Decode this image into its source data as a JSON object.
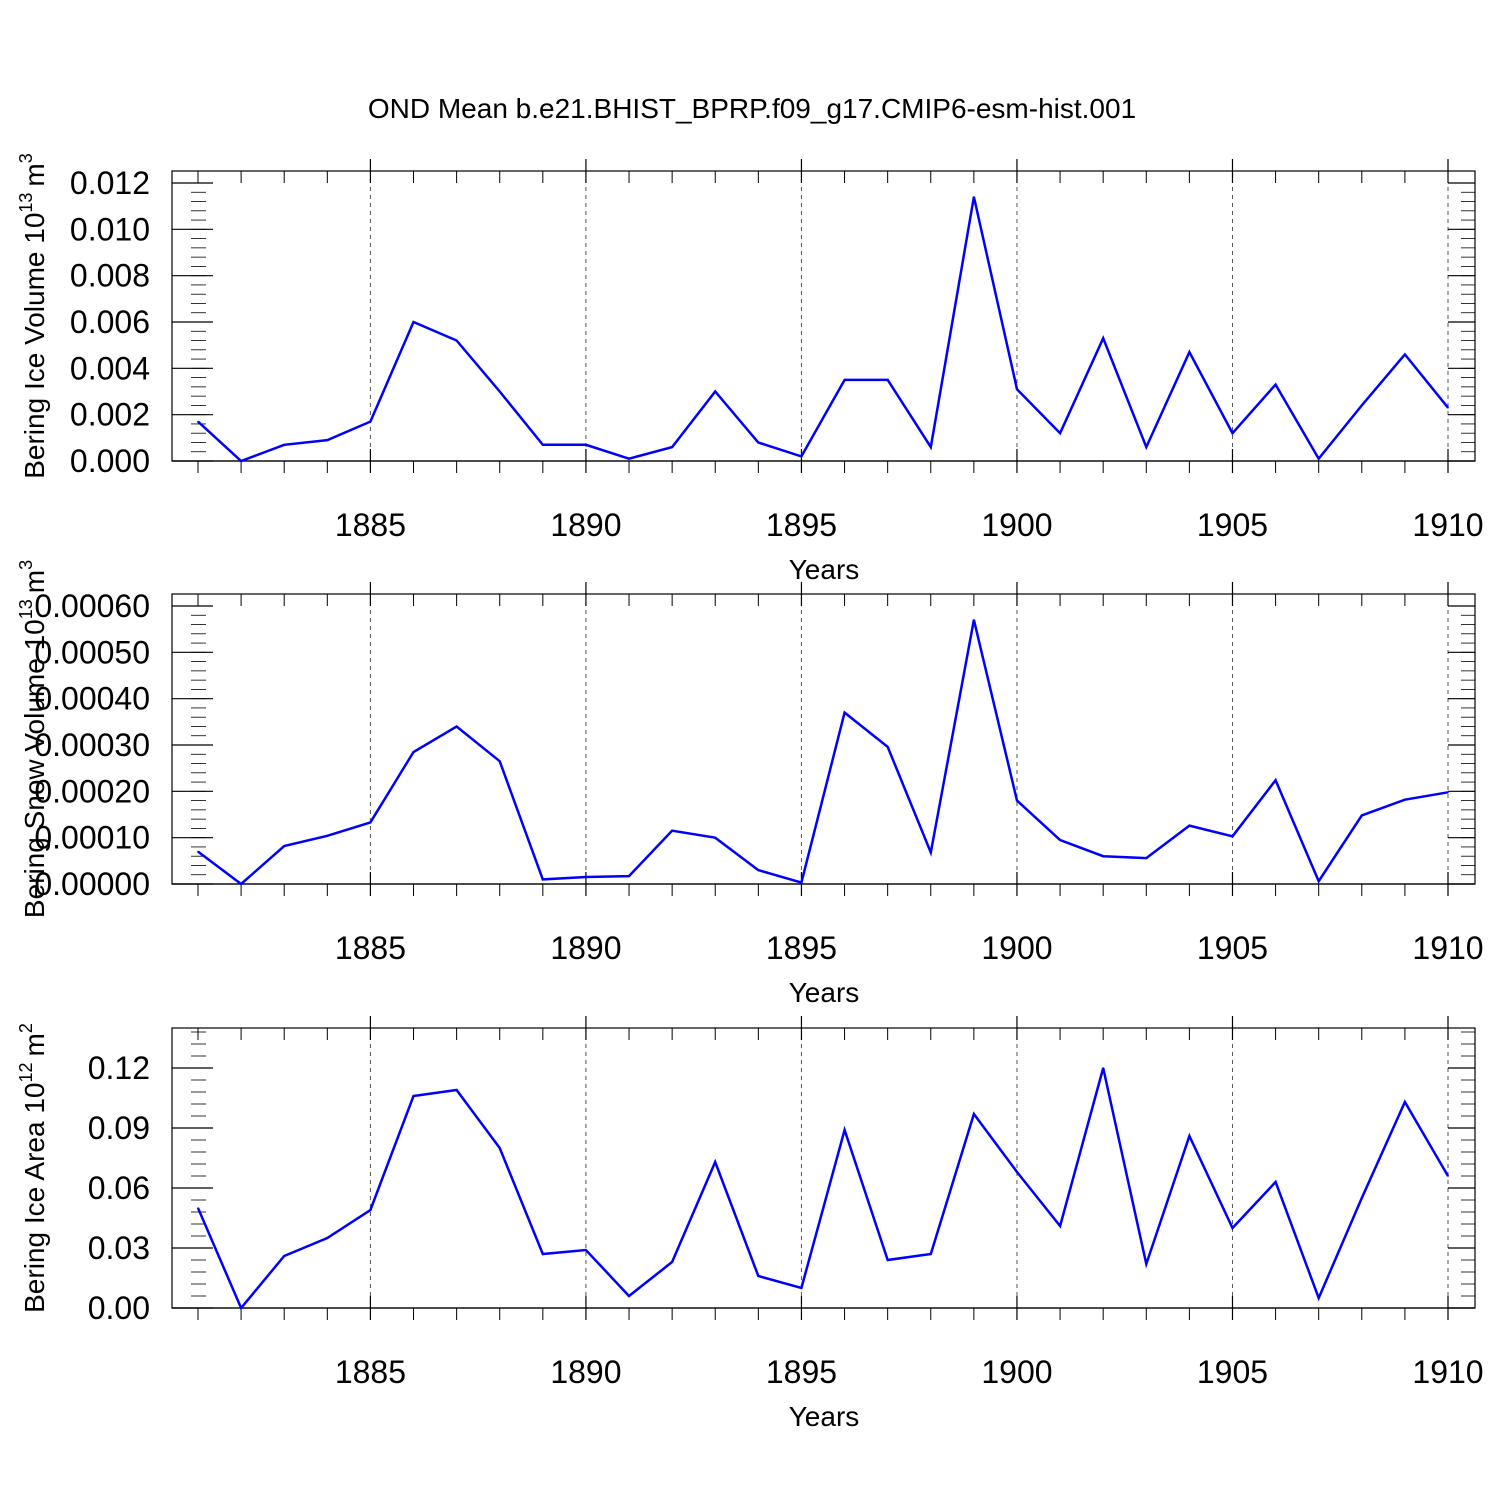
{
  "title": "OND Mean b.e21.BHIST_BPRP.f09_g17.CMIP6-esm-hist.001",
  "line_color": "#0000ff",
  "chart_data": [
    {
      "type": "line",
      "ylabel_text": "Bering Ice Volume 10",
      "ylabel_exp": "13",
      "ylabel_unit": "m",
      "ylabel_unit_exp": "3",
      "xlabel": "Years",
      "xlim": [
        1881,
        1910
      ],
      "ylim": [
        0,
        0.012
      ],
      "yticks": [
        "0.000",
        "0.002",
        "0.004",
        "0.006",
        "0.008",
        "0.010",
        "0.012"
      ],
      "xticks": [
        "1885",
        "1890",
        "1895",
        "1900",
        "1905",
        "1910"
      ],
      "x": [
        1881,
        1882,
        1883,
        1884,
        1885,
        1886,
        1887,
        1888,
        1889,
        1890,
        1891,
        1892,
        1893,
        1894,
        1895,
        1896,
        1897,
        1898,
        1899,
        1900,
        1901,
        1902,
        1903,
        1904,
        1905,
        1906,
        1907,
        1908,
        1909,
        1910
      ],
      "values": [
        0.0017,
        0.0,
        0.0007,
        0.0009,
        0.0017,
        0.006,
        0.0052,
        0.003,
        0.0007,
        0.0007,
        0.0001,
        0.0006,
        0.003,
        0.0008,
        0.0002,
        0.0035,
        0.0035,
        0.0006,
        0.0114,
        0.0031,
        0.0012,
        0.0053,
        0.0006,
        0.0047,
        0.0012,
        0.0033,
        0.0001,
        0.0024,
        0.0046,
        0.0023
      ]
    },
    {
      "type": "line",
      "ylabel_text": "Bering Snow Volume 10",
      "ylabel_exp": "13",
      "ylabel_unit": "m",
      "ylabel_unit_exp": "3",
      "xlabel": "Years",
      "xlim": [
        1881,
        1910
      ],
      "ylim": [
        0,
        0.0006
      ],
      "yticks": [
        "0.00000",
        "0.00010",
        "0.00020",
        "0.00030",
        "0.00040",
        "0.00050",
        "0.00060"
      ],
      "xticks": [
        "1885",
        "1890",
        "1895",
        "1900",
        "1905",
        "1910"
      ],
      "x": [
        1881,
        1882,
        1883,
        1884,
        1885,
        1886,
        1887,
        1888,
        1889,
        1890,
        1891,
        1892,
        1893,
        1894,
        1895,
        1896,
        1897,
        1898,
        1899,
        1900,
        1901,
        1902,
        1903,
        1904,
        1905,
        1906,
        1907,
        1908,
        1909,
        1910
      ],
      "values": [
        7e-05,
        0.0,
        8.2e-05,
        0.000104,
        0.000133,
        0.000285,
        0.00034,
        0.000265,
        1e-05,
        1.5e-05,
        1.7e-05,
        0.000115,
        0.0001,
        3e-05,
        3e-06,
        0.00037,
        0.000296,
        6.8e-05,
        0.00057,
        0.00018,
        9.5e-05,
        6e-05,
        5.6e-05,
        0.000126,
        0.000103,
        0.000224,
        6e-06,
        0.000148,
        0.000182,
        0.000198
      ]
    },
    {
      "type": "line",
      "ylabel_text": "Bering Ice Area 10",
      "ylabel_exp": "12",
      "ylabel_unit": "m",
      "ylabel_unit_exp": "2",
      "xlabel": "Years",
      "xlim": [
        1881,
        1910
      ],
      "ylim": [
        0,
        0.14
      ],
      "yticks": [
        "0.00",
        "0.03",
        "0.06",
        "0.09",
        "0.12"
      ],
      "ytick_values": [
        0,
        0.03,
        0.06,
        0.09,
        0.12
      ],
      "xticks": [
        "1885",
        "1890",
        "1895",
        "1900",
        "1905",
        "1910"
      ],
      "x": [
        1881,
        1882,
        1883,
        1884,
        1885,
        1886,
        1887,
        1888,
        1889,
        1890,
        1891,
        1892,
        1893,
        1894,
        1895,
        1896,
        1897,
        1898,
        1899,
        1900,
        1901,
        1902,
        1903,
        1904,
        1905,
        1906,
        1907,
        1908,
        1909,
        1910
      ],
      "values": [
        0.05,
        0.0,
        0.026,
        0.035,
        0.049,
        0.106,
        0.109,
        0.08,
        0.027,
        0.029,
        0.006,
        0.023,
        0.073,
        0.016,
        0.01,
        0.089,
        0.024,
        0.027,
        0.097,
        0.068,
        0.041,
        0.12,
        0.022,
        0.086,
        0.04,
        0.063,
        0.005,
        0.055,
        0.103,
        0.066
      ]
    }
  ]
}
